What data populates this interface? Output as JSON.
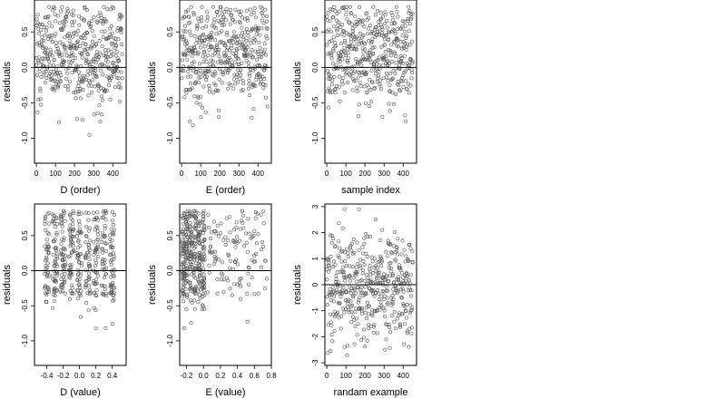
{
  "chart_data": [
    {
      "type": "scatter",
      "xlabel": "D (order)",
      "ylabel": "residuals",
      "xlim": [
        -10,
        470
      ],
      "ylim": [
        -1.35,
        0.95
      ],
      "xticks": [
        0,
        100,
        200,
        300,
        400
      ],
      "xtick_labels": [
        "0",
        "100",
        "200",
        "300",
        "400"
      ],
      "yticks": [
        -1.0,
        -0.5,
        0.0,
        0.5
      ],
      "ytick_labels": [
        "-1.0",
        "-0.5",
        "0.0",
        "0.5"
      ],
      "hline": 0,
      "point_count": 450,
      "x_range": [
        0,
        450
      ],
      "y_range": [
        -1.25,
        0.85
      ],
      "x_pattern": "uniform",
      "points": []
    },
    {
      "type": "scatter",
      "xlabel": "E (order)",
      "ylabel": "residuals",
      "xlim": [
        -10,
        470
      ],
      "ylim": [
        -1.35,
        0.95
      ],
      "xticks": [
        0,
        100,
        200,
        300,
        400
      ],
      "xtick_labels": [
        "0",
        "100",
        "200",
        "300",
        "400"
      ],
      "yticks": [
        -1.0,
        -0.5,
        0.0,
        0.5
      ],
      "ytick_labels": [
        "-1.0",
        "-0.5",
        "0.0",
        "0.5"
      ],
      "hline": 0,
      "point_count": 450,
      "x_range": [
        0,
        450
      ],
      "y_range": [
        -1.25,
        0.85
      ],
      "x_pattern": "uniform",
      "points": []
    },
    {
      "type": "scatter",
      "xlabel": "sample index",
      "ylabel": "residuals",
      "xlim": [
        -10,
        470
      ],
      "ylim": [
        -1.35,
        0.95
      ],
      "xticks": [
        0,
        100,
        200,
        300,
        400
      ],
      "xtick_labels": [
        "0",
        "100",
        "200",
        "300",
        "400"
      ],
      "yticks": [
        -1.0,
        -0.5,
        0.0,
        0.5
      ],
      "ytick_labels": [
        "-1.0",
        "-0.5",
        "0.0",
        "0.5"
      ],
      "hline": 0,
      "point_count": 450,
      "x_range": [
        0,
        450
      ],
      "y_range": [
        -1.25,
        0.85
      ],
      "x_pattern": "uniform",
      "points": []
    },
    {
      "type": "scatter",
      "xlabel": "D (value)",
      "ylabel": "residuals",
      "xlim": [
        -0.55,
        0.57
      ],
      "ylim": [
        -1.35,
        0.95
      ],
      "xticks": [
        -0.4,
        -0.2,
        0.0,
        0.2,
        0.4
      ],
      "xtick_labels": [
        "-0.4",
        "-0.2",
        "0.0",
        "0.2",
        "0.4"
      ],
      "yticks": [
        -1.0,
        -0.5,
        0.0,
        0.5
      ],
      "ytick_labels": [
        "-1.0",
        "-0.5",
        "0.0",
        "0.5"
      ],
      "hline": 0,
      "point_count": 450,
      "x_range": [
        -0.5,
        0.5
      ],
      "y_range": [
        -1.25,
        0.85
      ],
      "x_pattern": "clustered",
      "x_clusters": [
        -0.4,
        -0.3,
        -0.2,
        -0.1,
        0.0,
        0.1,
        0.2,
        0.3,
        0.4
      ],
      "points": []
    },
    {
      "type": "scatter",
      "xlabel": "E (value)",
      "ylabel": "residuals",
      "xlim": [
        -0.28,
        0.8
      ],
      "ylim": [
        -1.35,
        0.95
      ],
      "xticks": [
        -0.2,
        0.0,
        0.2,
        0.4,
        0.6,
        0.8
      ],
      "xtick_labels": [
        "-0.2",
        "0.0",
        "0.2",
        "0.4",
        "0.6",
        "0.8"
      ],
      "yticks": [
        -1.0,
        -0.5,
        0.0,
        0.5
      ],
      "ytick_labels": [
        "-1.0",
        "-0.5",
        "0.0",
        "0.5"
      ],
      "hline": 0,
      "point_count": 450,
      "x_range": [
        -0.25,
        0.75
      ],
      "y_range": [
        -1.25,
        0.85
      ],
      "x_pattern": "dense_left",
      "x_clusters": [
        -0.24,
        -0.2,
        -0.15,
        -0.1,
        -0.05,
        0.0
      ],
      "points": []
    },
    {
      "type": "scatter",
      "xlabel": "randam example",
      "ylabel": "residuals",
      "xlim": [
        -10,
        470
      ],
      "ylim": [
        -3.1,
        3.1
      ],
      "xticks": [
        0,
        100,
        200,
        300,
        400
      ],
      "xtick_labels": [
        "0",
        "100",
        "200",
        "300",
        "400"
      ],
      "yticks": [
        -3,
        -2,
        -1,
        0,
        1,
        2,
        3
      ],
      "ytick_labels": [
        "-3",
        "-2",
        "-1",
        "0",
        "1",
        "2",
        "3"
      ],
      "hline": 0,
      "point_count": 450,
      "x_range": [
        0,
        450
      ],
      "y_range": [
        -2.9,
        2.9
      ],
      "x_pattern": "uniform",
      "points": []
    }
  ]
}
